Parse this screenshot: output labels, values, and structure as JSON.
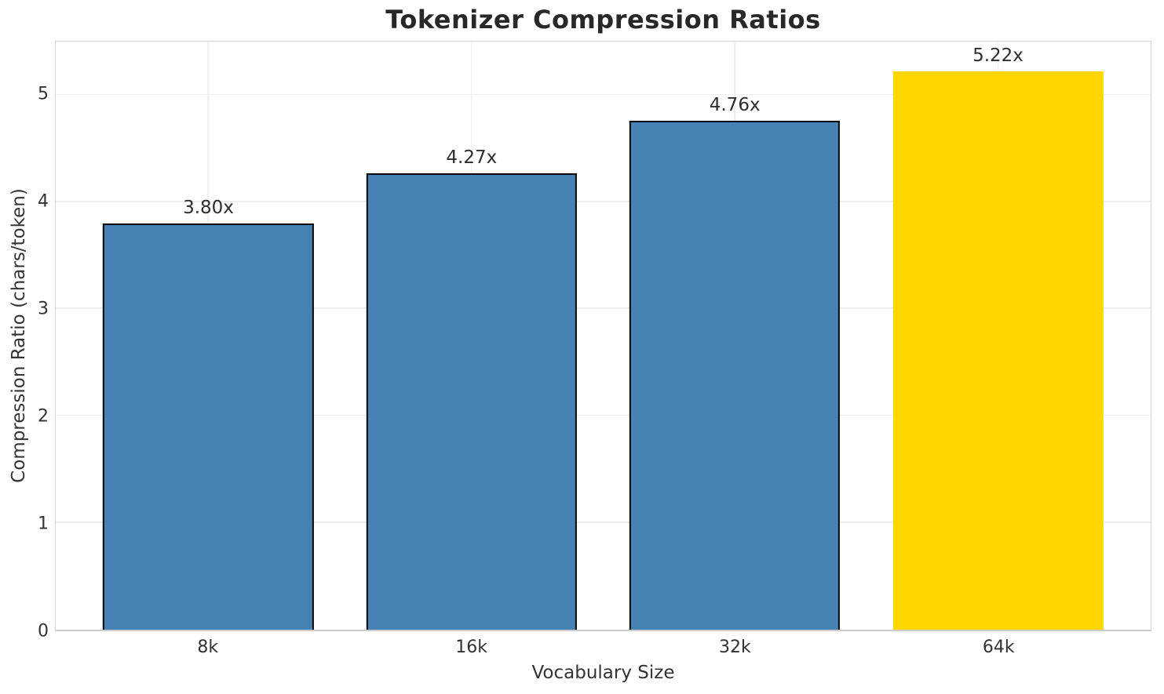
{
  "chart_data": {
    "type": "bar",
    "title": "Tokenizer Compression Ratios",
    "xlabel": "Vocabulary Size",
    "ylabel": "Compression Ratio (chars/token)",
    "categories": [
      "8k",
      "16k",
      "32k",
      "64k"
    ],
    "values": [
      3.8,
      4.27,
      4.76,
      5.22
    ],
    "bar_labels": [
      "3.80x",
      "4.27x",
      "4.76x",
      "5.22x"
    ],
    "y_ticks": [
      0,
      1,
      2,
      3,
      4,
      5
    ],
    "ylim": [
      0,
      5.5
    ],
    "bar_colors": [
      "#4682B4",
      "#4682B4",
      "#4682B4",
      "#FFD700"
    ],
    "bar_edge_colors": [
      "#0a0a0a",
      "#0a0a0a",
      "#0a0a0a",
      "none"
    ],
    "grid": true,
    "legend": "none",
    "colors": {
      "bar_default": "#4682B4",
      "bar_highlight": "#FFD700",
      "bar_edge": "#0a0a0a",
      "grid": "#eeeeee",
      "spine": "#d6d6d6",
      "title_text": "#282828",
      "tick_text": "#333333"
    }
  }
}
